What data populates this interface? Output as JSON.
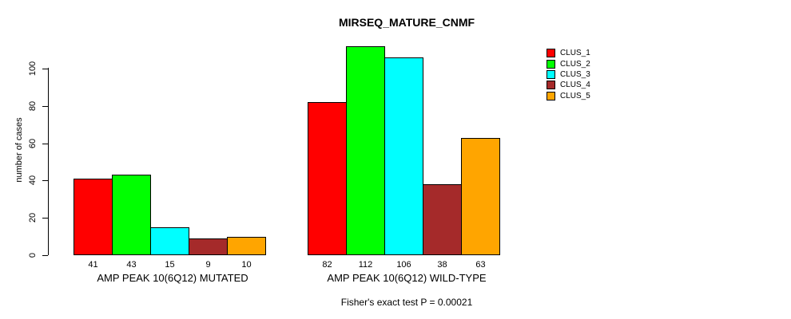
{
  "chart_data": {
    "type": "bar",
    "title": "MIRSEQ_MATURE_CNMF",
    "ylabel": "number of cases",
    "xlabel": "",
    "yticks": [
      0,
      20,
      40,
      60,
      80,
      100
    ],
    "ylim": [
      0,
      116
    ],
    "grid": false,
    "legend_position": "top-right",
    "categories": [
      "AMP PEAK 10(6Q12) MUTATED",
      "AMP PEAK 10(6Q12) WILD-TYPE"
    ],
    "series": [
      {
        "name": "CLUS_1",
        "color": "#ff0000",
        "values": [
          41,
          82
        ]
      },
      {
        "name": "CLUS_2",
        "color": "#00ff00",
        "values": [
          43,
          112
        ]
      },
      {
        "name": "CLUS_3",
        "color": "#00ffff",
        "values": [
          15,
          106
        ]
      },
      {
        "name": "CLUS_4",
        "color": "#a52a2a",
        "values": [
          9,
          38
        ]
      },
      {
        "name": "CLUS_5",
        "color": "#ffa500",
        "values": [
          10,
          63
        ]
      }
    ],
    "footnote": "Fisher's exact test P = 0.00021"
  }
}
